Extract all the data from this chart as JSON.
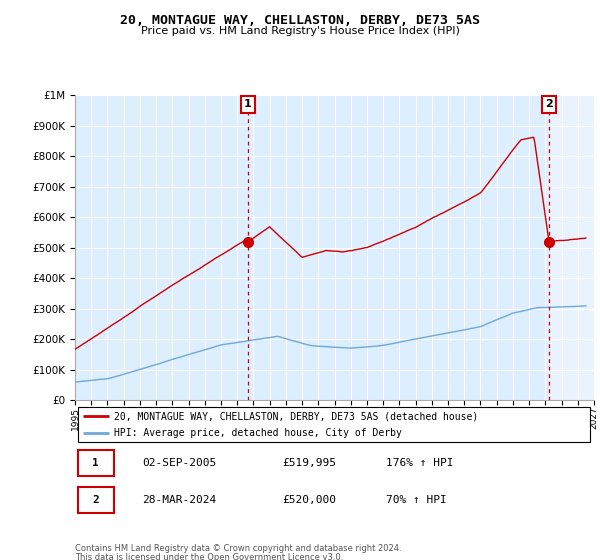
{
  "title": "20, MONTAGUE WAY, CHELLASTON, DERBY, DE73 5AS",
  "subtitle": "Price paid vs. HM Land Registry's House Price Index (HPI)",
  "legend_line1": "20, MONTAGUE WAY, CHELLASTON, DERBY, DE73 5AS (detached house)",
  "legend_line2": "HPI: Average price, detached house, City of Derby",
  "sale1_date": "02-SEP-2005",
  "sale1_price": "£519,995",
  "sale1_hpi": "176% ↑ HPI",
  "sale1_year": 2005.67,
  "sale1_value": 519995,
  "sale2_date": "28-MAR-2024",
  "sale2_price": "£520,000",
  "sale2_hpi": "70% ↑ HPI",
  "sale2_year": 2024.23,
  "sale2_value": 520000,
  "footer1": "Contains HM Land Registry data © Crown copyright and database right 2024.",
  "footer2": "This data is licensed under the Open Government Licence v3.0.",
  "hpi_color": "#6fa8d8",
  "property_color": "#cc0000",
  "vline_color": "#cc0000",
  "annotation_box_color": "#cc0000",
  "plot_bg_color": "#ddeeff",
  "ylim": [
    0,
    1000000
  ],
  "xlim_start": 1995,
  "xlim_end": 2027,
  "grid_color": "#ffffff"
}
